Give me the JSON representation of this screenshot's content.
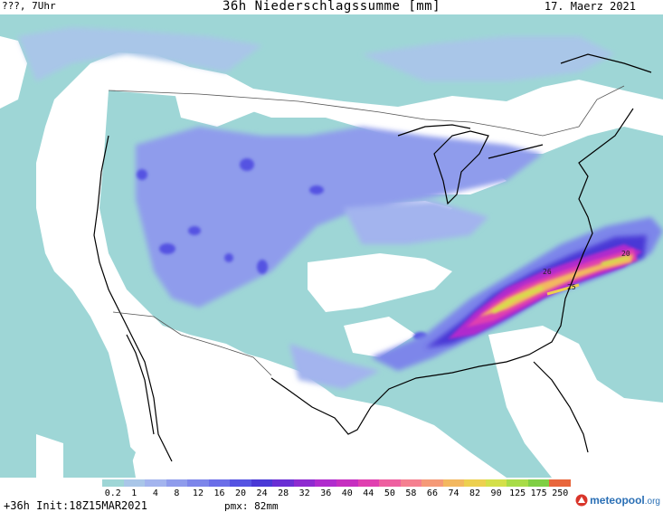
{
  "header": {
    "left": "???, 7Uhr",
    "title": "36h Niederschlagssumme [mm]",
    "date": "17. Maerz 2021"
  },
  "legend": {
    "labels": [
      "0.2",
      "1",
      "4",
      "8",
      "12",
      "16",
      "20",
      "24",
      "28",
      "32",
      "36",
      "40",
      "44",
      "50",
      "58",
      "66",
      "74",
      "82",
      "90",
      "125",
      "175",
      "250"
    ],
    "colors": [
      "#9ed6d6",
      "#a9c6e8",
      "#a3b4ee",
      "#8f9cec",
      "#7d86ea",
      "#6b6ee8",
      "#5553e2",
      "#4a39d6",
      "#6a2fd4",
      "#8e2bd0",
      "#b02ccd",
      "#c62fc0",
      "#e040b0",
      "#ee60a0",
      "#f58090",
      "#f59a78",
      "#f3b860",
      "#edd050",
      "#d4e04a",
      "#a8dc48",
      "#7fcf44",
      "#e8663c"
    ]
  },
  "footer": {
    "left": "+36h Init:18Z15MAR2021",
    "pmx": "pmx: 82mm"
  },
  "logo": {
    "name": "meteopool",
    "ext": ".org"
  },
  "map_labels": [
    "26",
    "20",
    "25"
  ],
  "colors": {
    "ocean_fill": "#ffffff",
    "light_precip": "#9ed6d6",
    "medium_precip": "#7d86ea",
    "heavy_precip": "#d42fc6",
    "peak_precip": "#eedc48",
    "border": "#555555",
    "coast": "#000000",
    "logo_blue": "#2a6fb5",
    "logo_red": "#d9352a"
  }
}
